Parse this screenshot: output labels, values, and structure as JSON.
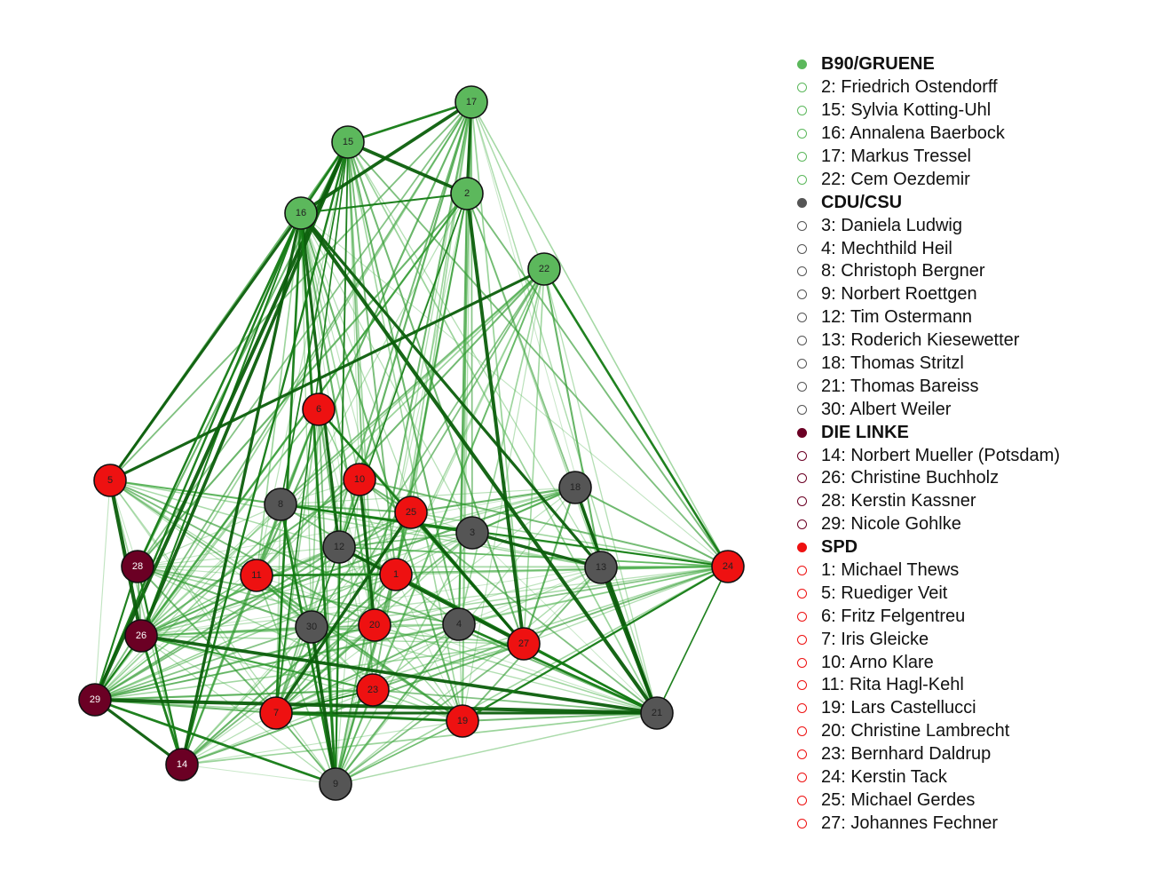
{
  "parties": [
    {
      "key": "gruene",
      "name": "B90/GRUENE",
      "color": "#5cb85c",
      "label_color": "#222222"
    },
    {
      "key": "cdu",
      "name": "CDU/CSU",
      "color": "#555555",
      "label_color": "#222222"
    },
    {
      "key": "linke",
      "name": "DIE LINKE",
      "color": "#6b0024",
      "label_color": "#ffffff"
    },
    {
      "key": "spd",
      "name": "SPD",
      "color": "#ee1111",
      "label_color": "#222222"
    }
  ],
  "nodes": [
    {
      "id": 1,
      "name": "Michael Thews",
      "party": "spd"
    },
    {
      "id": 2,
      "name": "Friedrich Ostendorff",
      "party": "gruene"
    },
    {
      "id": 3,
      "name": "Daniela Ludwig",
      "party": "cdu"
    },
    {
      "id": 4,
      "name": "Mechthild Heil",
      "party": "cdu"
    },
    {
      "id": 5,
      "name": "Ruediger Veit",
      "party": "spd"
    },
    {
      "id": 6,
      "name": "Fritz Felgentreu",
      "party": "spd"
    },
    {
      "id": 7,
      "name": "Iris Gleicke",
      "party": "spd"
    },
    {
      "id": 8,
      "name": "Christoph Bergner",
      "party": "cdu"
    },
    {
      "id": 9,
      "name": "Norbert Roettgen",
      "party": "cdu"
    },
    {
      "id": 10,
      "name": "Arno Klare",
      "party": "spd"
    },
    {
      "id": 11,
      "name": "Rita Hagl-Kehl",
      "party": "spd"
    },
    {
      "id": 12,
      "name": "Tim Ostermann",
      "party": "cdu"
    },
    {
      "id": 13,
      "name": "Roderich Kiesewetter",
      "party": "cdu"
    },
    {
      "id": 14,
      "name": "Norbert Mueller (Potsdam)",
      "party": "linke"
    },
    {
      "id": 15,
      "name": "Sylvia Kotting-Uhl",
      "party": "gruene"
    },
    {
      "id": 16,
      "name": "Annalena Baerbock",
      "party": "gruene"
    },
    {
      "id": 17,
      "name": "Markus Tressel",
      "party": "gruene"
    },
    {
      "id": 18,
      "name": "Thomas Stritzl",
      "party": "cdu"
    },
    {
      "id": 19,
      "name": "Lars Castellucci",
      "party": "spd"
    },
    {
      "id": 20,
      "name": "Christine Lambrecht",
      "party": "spd"
    },
    {
      "id": 21,
      "name": "Thomas Bareiss",
      "party": "cdu"
    },
    {
      "id": 22,
      "name": "Cem Oezdemir",
      "party": "gruene"
    },
    {
      "id": 23,
      "name": "Bernhard Daldrup",
      "party": "spd"
    },
    {
      "id": 24,
      "name": "Kerstin Tack",
      "party": "spd"
    },
    {
      "id": 25,
      "name": "Michael Gerdes",
      "party": "spd"
    },
    {
      "id": 26,
      "name": "Christine Buchholz",
      "party": "linke"
    },
    {
      "id": 27,
      "name": "Johannes Fechner",
      "party": "spd"
    },
    {
      "id": 28,
      "name": "Kerstin Kassner",
      "party": "linke"
    },
    {
      "id": 29,
      "name": "Nicole Gohlke",
      "party": "linke"
    },
    {
      "id": 30,
      "name": "Albert Weiler",
      "party": "cdu"
    }
  ],
  "legend": [
    {
      "type": "party",
      "text": "B90/GRUENE",
      "color": "#5cb85c"
    },
    {
      "type": "member",
      "text": "2: Friedrich Ostendorff",
      "color": "#5cb85c"
    },
    {
      "type": "member",
      "text": "15: Sylvia Kotting-Uhl",
      "color": "#5cb85c"
    },
    {
      "type": "member",
      "text": "16: Annalena Baerbock",
      "color": "#5cb85c"
    },
    {
      "type": "member",
      "text": "17: Markus Tressel",
      "color": "#5cb85c"
    },
    {
      "type": "member",
      "text": "22: Cem Oezdemir",
      "color": "#5cb85c"
    },
    {
      "type": "party",
      "text": "CDU/CSU",
      "color": "#555555"
    },
    {
      "type": "member",
      "text": "3: Daniela Ludwig",
      "color": "#555555"
    },
    {
      "type": "member",
      "text": "4: Mechthild Heil",
      "color": "#555555"
    },
    {
      "type": "member",
      "text": "8: Christoph Bergner",
      "color": "#555555"
    },
    {
      "type": "member",
      "text": "9: Norbert Roettgen",
      "color": "#555555"
    },
    {
      "type": "member",
      "text": "12: Tim Ostermann",
      "color": "#555555"
    },
    {
      "type": "member",
      "text": "13: Roderich Kiesewetter",
      "color": "#555555"
    },
    {
      "type": "member",
      "text": "18: Thomas Stritzl",
      "color": "#555555"
    },
    {
      "type": "member",
      "text": "21: Thomas Bareiss",
      "color": "#555555"
    },
    {
      "type": "member",
      "text": "30: Albert Weiler",
      "color": "#555555"
    },
    {
      "type": "party",
      "text": "DIE LINKE",
      "color": "#6b0024"
    },
    {
      "type": "member",
      "text": "14: Norbert Mueller (Potsdam)",
      "color": "#6b0024"
    },
    {
      "type": "member",
      "text": "26: Christine Buchholz",
      "color": "#6b0024"
    },
    {
      "type": "member",
      "text": "28: Kerstin Kassner",
      "color": "#6b0024"
    },
    {
      "type": "member",
      "text": "29: Nicole Gohlke",
      "color": "#6b0024"
    },
    {
      "type": "party",
      "text": "SPD",
      "color": "#ee1111"
    },
    {
      "type": "member",
      "text": "1: Michael Thews",
      "color": "#ee1111"
    },
    {
      "type": "member",
      "text": "5: Ruediger Veit",
      "color": "#ee1111"
    },
    {
      "type": "member",
      "text": "6: Fritz Felgentreu",
      "color": "#ee1111"
    },
    {
      "type": "member",
      "text": "7: Iris Gleicke",
      "color": "#ee1111"
    },
    {
      "type": "member",
      "text": "10: Arno Klare",
      "color": "#ee1111"
    },
    {
      "type": "member",
      "text": "11: Rita Hagl-Kehl",
      "color": "#ee1111"
    },
    {
      "type": "member",
      "text": "19: Lars Castellucci",
      "color": "#ee1111"
    },
    {
      "type": "member",
      "text": "20: Christine Lambrecht",
      "color": "#ee1111"
    },
    {
      "type": "member",
      "text": "23: Bernhard Daldrup",
      "color": "#ee1111"
    },
    {
      "type": "member",
      "text": "24: Kerstin Tack",
      "color": "#ee1111"
    },
    {
      "type": "member",
      "text": "25: Michael Gerdes",
      "color": "#ee1111"
    },
    {
      "type": "member",
      "text": "27: Johannes Fechner",
      "color": "#ee1111"
    }
  ],
  "strong_edges": [
    [
      16,
      7
    ],
    [
      15,
      7
    ],
    [
      15,
      9
    ],
    [
      16,
      29
    ],
    [
      16,
      26
    ],
    [
      15,
      26
    ],
    [
      15,
      29
    ],
    [
      15,
      14
    ],
    [
      16,
      14
    ],
    [
      16,
      2
    ],
    [
      16,
      17
    ],
    [
      15,
      2
    ],
    [
      15,
      16
    ],
    [
      16,
      13
    ],
    [
      16,
      21
    ],
    [
      16,
      12
    ],
    [
      15,
      8
    ],
    [
      22,
      24
    ],
    [
      13,
      21
    ],
    [
      18,
      21
    ],
    [
      24,
      21
    ],
    [
      29,
      28
    ],
    [
      29,
      14
    ],
    [
      28,
      14
    ],
    [
      26,
      14
    ],
    [
      26,
      29
    ],
    [
      5,
      26
    ],
    [
      8,
      9
    ],
    [
      8,
      24
    ],
    [
      7,
      21
    ],
    [
      7,
      19
    ],
    [
      23,
      7
    ],
    [
      29,
      21
    ],
    [
      29,
      9
    ],
    [
      16,
      9
    ],
    [
      2,
      27
    ],
    [
      5,
      16
    ],
    [
      22,
      5
    ],
    [
      17,
      2
    ],
    [
      15,
      17
    ],
    [
      2,
      30
    ],
    [
      8,
      3
    ],
    [
      3,
      13
    ],
    [
      26,
      21
    ],
    [
      7,
      25
    ],
    [
      28,
      16
    ],
    [
      30,
      9
    ],
    [
      1,
      21
    ],
    [
      10,
      20
    ],
    [
      11,
      1
    ],
    [
      6,
      27
    ],
    [
      12,
      27
    ],
    [
      25,
      27
    ],
    [
      27,
      21
    ],
    [
      19,
      24
    ],
    [
      4,
      21
    ]
  ],
  "weak_edges": [
    [
      17,
      22
    ],
    [
      17,
      24
    ],
    [
      17,
      5
    ],
    [
      17,
      7
    ],
    [
      17,
      9
    ],
    [
      17,
      1
    ],
    [
      17,
      20
    ],
    [
      17,
      19
    ],
    [
      17,
      3
    ],
    [
      17,
      4
    ],
    [
      17,
      26
    ],
    [
      17,
      29
    ],
    [
      17,
      11
    ],
    [
      17,
      12
    ],
    [
      17,
      25
    ],
    [
      17,
      28
    ],
    [
      2,
      7
    ],
    [
      2,
      9
    ],
    [
      2,
      19
    ],
    [
      2,
      4
    ],
    [
      2,
      29
    ],
    [
      2,
      11
    ],
    [
      2,
      12
    ],
    [
      2,
      23
    ],
    [
      2,
      1
    ],
    [
      2,
      26
    ],
    [
      2,
      28
    ],
    [
      22,
      9
    ],
    [
      22,
      7
    ],
    [
      22,
      19
    ],
    [
      22,
      29
    ],
    [
      22,
      26
    ],
    [
      22,
      11
    ],
    [
      22,
      13
    ],
    [
      22,
      20
    ],
    [
      22,
      23
    ],
    [
      22,
      30
    ],
    [
      22,
      4
    ],
    [
      22,
      8
    ],
    [
      22,
      1
    ],
    [
      15,
      1
    ],
    [
      15,
      20
    ],
    [
      15,
      23
    ],
    [
      15,
      19
    ],
    [
      15,
      4
    ],
    [
      15,
      21
    ],
    [
      15,
      24
    ],
    [
      15,
      10
    ],
    [
      15,
      11
    ],
    [
      15,
      5
    ],
    [
      15,
      28
    ],
    [
      16,
      10
    ],
    [
      16,
      11
    ],
    [
      16,
      20
    ],
    [
      16,
      23
    ],
    [
      16,
      19
    ],
    [
      16,
      4
    ],
    [
      16,
      1
    ],
    [
      16,
      3
    ],
    [
      16,
      24
    ],
    [
      16,
      30
    ],
    [
      5,
      9
    ],
    [
      5,
      7
    ],
    [
      5,
      24
    ],
    [
      5,
      21
    ],
    [
      5,
      13
    ],
    [
      5,
      29
    ],
    [
      5,
      14
    ],
    [
      5,
      28
    ],
    [
      5,
      3
    ],
    [
      5,
      20
    ],
    [
      5,
      19
    ],
    [
      6,
      7
    ],
    [
      6,
      9
    ],
    [
      6,
      29
    ],
    [
      6,
      23
    ],
    [
      6,
      19
    ],
    [
      6,
      14
    ],
    [
      6,
      26
    ],
    [
      10,
      9
    ],
    [
      10,
      7
    ],
    [
      10,
      29
    ],
    [
      10,
      21
    ],
    [
      10,
      26
    ],
    [
      10,
      24
    ],
    [
      25,
      29
    ],
    [
      25,
      26
    ],
    [
      25,
      9
    ],
    [
      25,
      24
    ],
    [
      25,
      14
    ],
    [
      3,
      29
    ],
    [
      3,
      26
    ],
    [
      3,
      7
    ],
    [
      3,
      9
    ],
    [
      3,
      24
    ],
    [
      3,
      14
    ],
    [
      3,
      21
    ],
    [
      18,
      29
    ],
    [
      18,
      26
    ],
    [
      18,
      8
    ],
    [
      18,
      7
    ],
    [
      18,
      9
    ],
    [
      18,
      28
    ],
    [
      18,
      11
    ],
    [
      18,
      12
    ],
    [
      13,
      29
    ],
    [
      13,
      26
    ],
    [
      13,
      8
    ],
    [
      13,
      28
    ],
    [
      13,
      24
    ],
    [
      13,
      9
    ],
    [
      13,
      7
    ],
    [
      24,
      29
    ],
    [
      24,
      26
    ],
    [
      24,
      7
    ],
    [
      24,
      9
    ],
    [
      24,
      28
    ],
    [
      24,
      8
    ],
    [
      24,
      12
    ],
    [
      24,
      11
    ],
    [
      1,
      29
    ],
    [
      1,
      26
    ],
    [
      1,
      14
    ],
    [
      1,
      7
    ],
    [
      1,
      9
    ],
    [
      1,
      8
    ],
    [
      1,
      24
    ],
    [
      11,
      29
    ],
    [
      11,
      26
    ],
    [
      11,
      24
    ],
    [
      11,
      21
    ],
    [
      11,
      9
    ],
    [
      11,
      19
    ],
    [
      12,
      29
    ],
    [
      12,
      26
    ],
    [
      12,
      24
    ],
    [
      12,
      21
    ],
    [
      12,
      19
    ],
    [
      12,
      9
    ],
    [
      30,
      29
    ],
    [
      30,
      26
    ],
    [
      30,
      24
    ],
    [
      30,
      21
    ],
    [
      30,
      27
    ],
    [
      20,
      29
    ],
    [
      20,
      26
    ],
    [
      20,
      21
    ],
    [
      20,
      9
    ],
    [
      20,
      14
    ],
    [
      20,
      24
    ],
    [
      4,
      29
    ],
    [
      4,
      26
    ],
    [
      4,
      9
    ],
    [
      4,
      7
    ],
    [
      4,
      24
    ],
    [
      4,
      28
    ],
    [
      27,
      29
    ],
    [
      27,
      26
    ],
    [
      27,
      7
    ],
    [
      27,
      9
    ],
    [
      27,
      14
    ],
    [
      27,
      24
    ],
    [
      23,
      29
    ],
    [
      23,
      26
    ],
    [
      23,
      21
    ],
    [
      23,
      9
    ],
    [
      23,
      24
    ],
    [
      19,
      29
    ],
    [
      19,
      26
    ],
    [
      19,
      9
    ],
    [
      19,
      28
    ],
    [
      21,
      9
    ],
    [
      21,
      14
    ],
    [
      7,
      14
    ],
    [
      7,
      28
    ],
    [
      7,
      29
    ],
    [
      7,
      9
    ],
    [
      9,
      14
    ],
    [
      28,
      26
    ],
    [
      8,
      29
    ],
    [
      8,
      26
    ],
    [
      8,
      7
    ],
    [
      8,
      11
    ],
    [
      8,
      28
    ],
    [
      10,
      8
    ],
    [
      25,
      8
    ],
    [
      6,
      8
    ],
    [
      30,
      8
    ],
    [
      6,
      11
    ],
    [
      10,
      11
    ],
    [
      12,
      11
    ],
    [
      1,
      12
    ],
    [
      25,
      12
    ],
    [
      3,
      12
    ],
    [
      3,
      1
    ],
    [
      3,
      25
    ],
    [
      10,
      25
    ],
    [
      10,
      12
    ],
    [
      6,
      12
    ],
    [
      6,
      25
    ],
    [
      6,
      30
    ],
    [
      6,
      20
    ],
    [
      6,
      1
    ],
    [
      20,
      19
    ],
    [
      20,
      7
    ],
    [
      23,
      19
    ],
    [
      23,
      11
    ],
    [
      30,
      23
    ],
    [
      30,
      7
    ],
    [
      30,
      11
    ],
    [
      4,
      1
    ],
    [
      4,
      19
    ],
    [
      4,
      23
    ],
    [
      4,
      20
    ],
    [
      4,
      13
    ],
    [
      13,
      27
    ],
    [
      13,
      19
    ],
    [
      18,
      3
    ],
    [
      18,
      24
    ],
    [
      18,
      25
    ],
    [
      18,
      27
    ],
    [
      18,
      13
    ],
    [
      2,
      13
    ],
    [
      2,
      21
    ],
    [
      2,
      24
    ],
    [
      22,
      21
    ],
    [
      22,
      27
    ],
    [
      17,
      21
    ],
    [
      17,
      13
    ],
    [
      17,
      27
    ],
    [
      15,
      13
    ],
    [
      15,
      27
    ],
    [
      5,
      8
    ],
    [
      5,
      11
    ],
    [
      5,
      30
    ],
    [
      5,
      12
    ],
    [
      28,
      11
    ],
    [
      28,
      30
    ],
    [
      28,
      12
    ],
    [
      28,
      20
    ],
    [
      26,
      11
    ],
    [
      26,
      7
    ],
    [
      26,
      9
    ],
    [
      26,
      23
    ],
    [
      29,
      11
    ],
    [
      29,
      23
    ],
    [
      14,
      23
    ],
    [
      14,
      19
    ],
    [
      14,
      30
    ],
    [
      14,
      11
    ],
    [
      9,
      19
    ],
    [
      9,
      23
    ],
    [
      9,
      7
    ],
    [
      21,
      19
    ],
    [
      21,
      27
    ]
  ]
}
